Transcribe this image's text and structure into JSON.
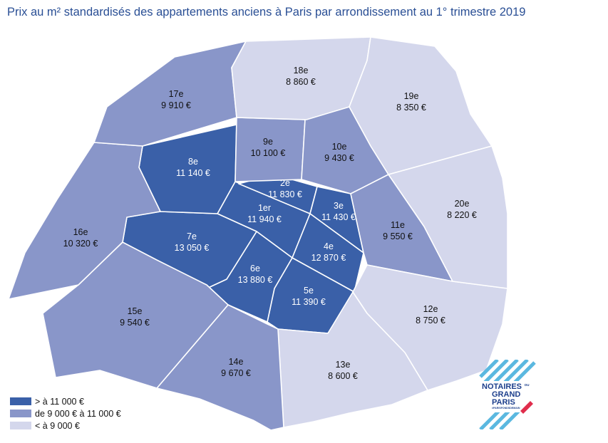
{
  "title": "Prix au m² standardisés des appartements anciens à Paris par arrondissement au 1° trimestre 2019",
  "colors": {
    "high": "#3a60a8",
    "mid": "#8996c9",
    "low": "#d4d7ec",
    "title": "#2a4f95",
    "logo_stripe": "#5bb8e0",
    "logo_accent": "#e02d4c"
  },
  "legend": [
    {
      "key": "high",
      "label": "> à 11 000 €"
    },
    {
      "key": "mid",
      "label": "de 9 000 € à 11 000 €"
    },
    {
      "key": "low",
      "label": "< à 9 000 €"
    }
  ],
  "arrondissements": [
    {
      "id": "1er",
      "name": "1er",
      "price": "11 940 €",
      "class": "high"
    },
    {
      "id": "2e",
      "name": "2e",
      "price": "11 830 €",
      "class": "high"
    },
    {
      "id": "3e",
      "name": "3e",
      "price": "11 430 €",
      "class": "high"
    },
    {
      "id": "4e",
      "name": "4e",
      "price": "12 870 €",
      "class": "high"
    },
    {
      "id": "5e",
      "name": "5e",
      "price": "11 390 €",
      "class": "high"
    },
    {
      "id": "6e",
      "name": "6e",
      "price": "13 880 €",
      "class": "high"
    },
    {
      "id": "7e",
      "name": "7e",
      "price": "13 050 €",
      "class": "high"
    },
    {
      "id": "8e",
      "name": "8e",
      "price": "11 140 €",
      "class": "high"
    },
    {
      "id": "9e",
      "name": "9e",
      "price": "10 100 €",
      "class": "mid"
    },
    {
      "id": "10e",
      "name": "10e",
      "price": "9 430 €",
      "class": "mid"
    },
    {
      "id": "11e",
      "name": "11e",
      "price": "9 550 €",
      "class": "mid"
    },
    {
      "id": "12e",
      "name": "12e",
      "price": "8 750 €",
      "class": "low"
    },
    {
      "id": "13e",
      "name": "13e",
      "price": "8 600 €",
      "class": "low"
    },
    {
      "id": "14e",
      "name": "14e",
      "price": "9 670 €",
      "class": "mid"
    },
    {
      "id": "15e",
      "name": "15e",
      "price": "9 540 €",
      "class": "mid"
    },
    {
      "id": "16e",
      "name": "16e",
      "price": "10 320 €",
      "class": "mid"
    },
    {
      "id": "17e",
      "name": "17e",
      "price": "9 910 €",
      "class": "mid"
    },
    {
      "id": "18e",
      "name": "18e",
      "price": "8 860 €",
      "class": "low"
    },
    {
      "id": "19e",
      "name": "19e",
      "price": "8 350 €",
      "class": "low"
    },
    {
      "id": "20e",
      "name": "20e",
      "price": "8 220 €",
      "class": "low"
    }
  ],
  "logo": {
    "line1": "NOTAIRES",
    "small": "DU",
    "line2": "GRAND",
    "line3": "PARIS",
    "tagline": "#PARISFONDSDEMAIN"
  }
}
